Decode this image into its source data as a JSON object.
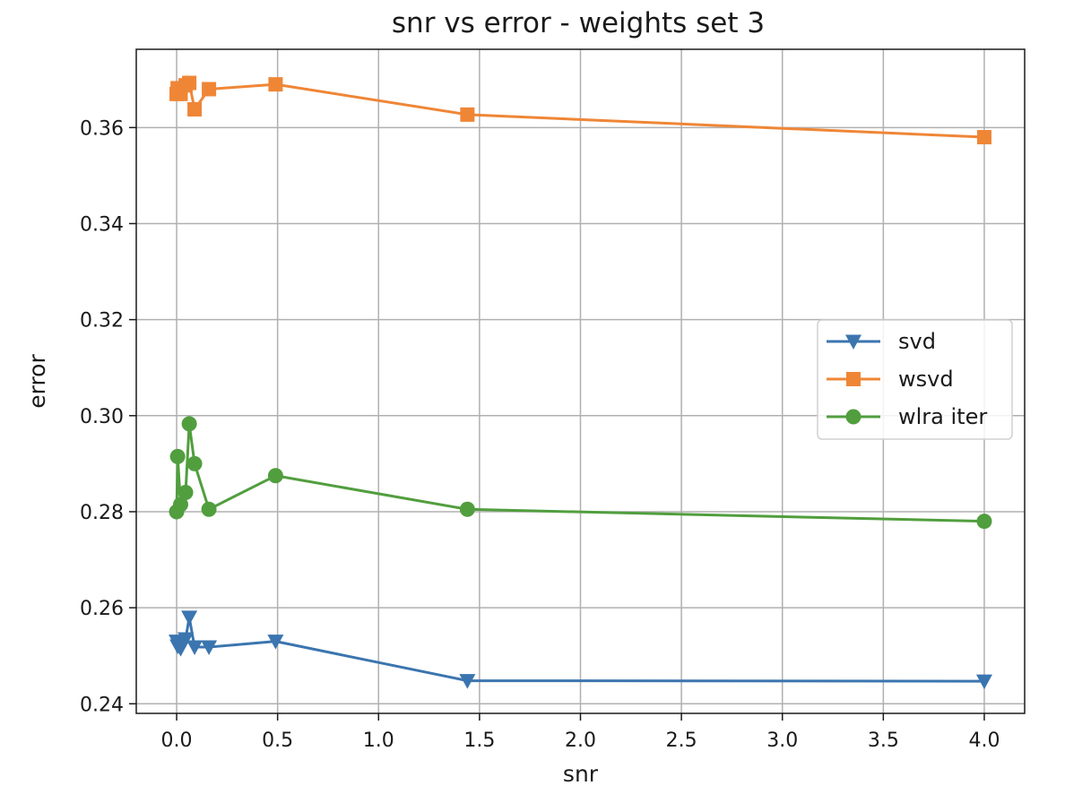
{
  "chart_data": {
    "type": "line",
    "title": "snr vs error - weights set 3",
    "xlabel": "snr",
    "ylabel": "error",
    "xlim": [
      -0.2,
      4.2
    ],
    "ylim": [
      0.238,
      0.3763
    ],
    "xticks": [
      0.0,
      0.5,
      1.0,
      1.5,
      2.0,
      2.5,
      3.0,
      3.5,
      4.0
    ],
    "xtick_labels": [
      "0.0",
      "0.5",
      "1.0",
      "1.5",
      "2.0",
      "2.5",
      "3.0",
      "3.5",
      "4.0"
    ],
    "yticks": [
      0.24,
      0.26,
      0.28,
      0.3,
      0.32,
      0.34,
      0.36
    ],
    "ytick_labels": [
      "0.24",
      "0.26",
      "0.28",
      "0.30",
      "0.32",
      "0.34",
      "0.36"
    ],
    "grid": true,
    "legend_position": "center-right",
    "x": [
      0.0,
      0.0049,
      0.0198,
      0.0444,
      0.0625,
      0.0889,
      0.16,
      0.49,
      1.44,
      4.0
    ],
    "series": [
      {
        "name": "svd",
        "color": "#3b75af",
        "marker": "triangle-down",
        "values": [
          0.253,
          0.252,
          0.2515,
          0.2535,
          0.258,
          0.2518,
          0.2518,
          0.253,
          0.2448,
          0.2447
        ]
      },
      {
        "name": "wsvd",
        "color": "#ef8636",
        "marker": "square",
        "values": [
          0.367,
          0.3682,
          0.367,
          0.3688,
          0.3693,
          0.3638,
          0.368,
          0.369,
          0.3627,
          0.358
        ]
      },
      {
        "name": "wlra iter",
        "color": "#519e3e",
        "marker": "circle",
        "values": [
          0.28,
          0.2915,
          0.2815,
          0.284,
          0.2983,
          0.29,
          0.2805,
          0.2875,
          0.2805,
          0.278
        ]
      }
    ]
  }
}
